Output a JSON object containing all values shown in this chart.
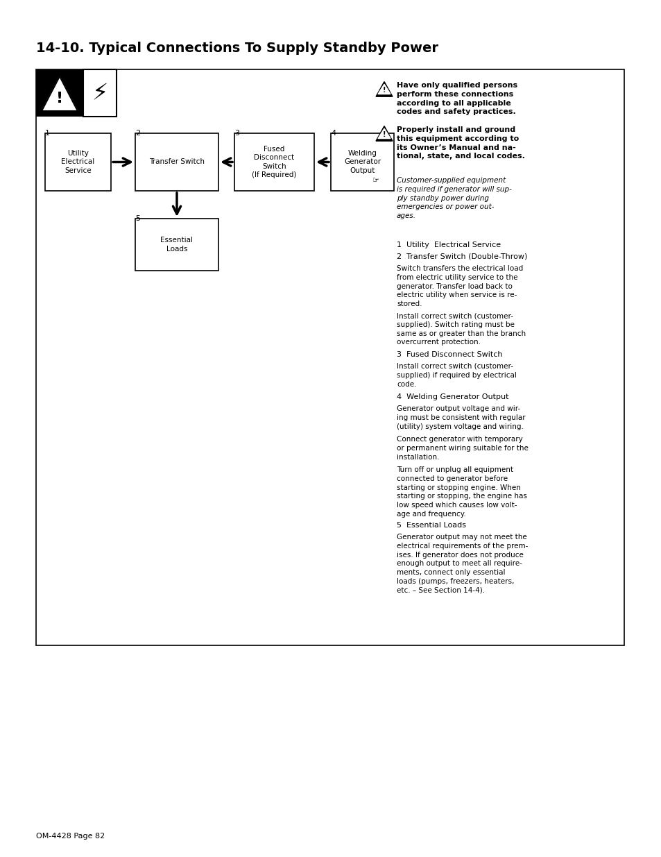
{
  "title": "14-10. Typical Connections To Supply Standby Power",
  "page_label": "OM-4428 Page 82",
  "bg_color": "#ffffff",
  "border_color": "#000000",
  "warning1": "Have only qualified persons\nperform these connections\naccording to all applicable\ncodes and safety practices.",
  "warning2": "Properly install and ground\nthis equipment according to\nits Owner’s Manual and na-\ntional, state, and local codes.",
  "note": "Customer-supplied equipment\nis required if generator will sup-\nply standby power during\nemergencies or power out-\nages.",
  "text_items": [
    {
      "type": "label",
      "text": "1  Utility  Electrical Service"
    },
    {
      "type": "label",
      "text": "2  Transfer Switch (Double-Throw)"
    },
    {
      "type": "para",
      "text": "Switch transfers the electrical load\nfrom electric utility service to the\ngenerator. Transfer load back to\nelectric utility when service is re-\nstored."
    },
    {
      "type": "para",
      "text": "Install correct switch (customer-\nsupplied). Switch rating must be\nsame as or greater than the branch\novercurrent protection."
    },
    {
      "type": "label",
      "text": "3  Fused Disconnect Switch"
    },
    {
      "type": "para",
      "text": "Install correct switch (customer-\nsupplied) if required by electrical\ncode."
    },
    {
      "type": "label",
      "text": "4  Welding Generator Output"
    },
    {
      "type": "para",
      "text": "Generator output voltage and wir-\ning must be consistent with regular\n(utility) system voltage and wiring."
    },
    {
      "type": "para",
      "text": "Connect generator with temporary\nor permanent wiring suitable for the\ninstallation."
    },
    {
      "type": "para",
      "text": "Turn off or unplug all equipment\nconnected to generator before\nstarting or stopping engine. When\nstarting or stopping, the engine has\nlow speed which causes low volt-\nage and frequency."
    },
    {
      "type": "label",
      "text": "5  Essential Loads"
    },
    {
      "type": "para",
      "text": "Generator output may not meet the\nelectrical requirements of the prem-\nises. If generator does not produce\nenough output to meet all require-\nments, connect only essential\nloads (pumps, freezers, heaters,\netc. – See Section 14-4)."
    }
  ]
}
